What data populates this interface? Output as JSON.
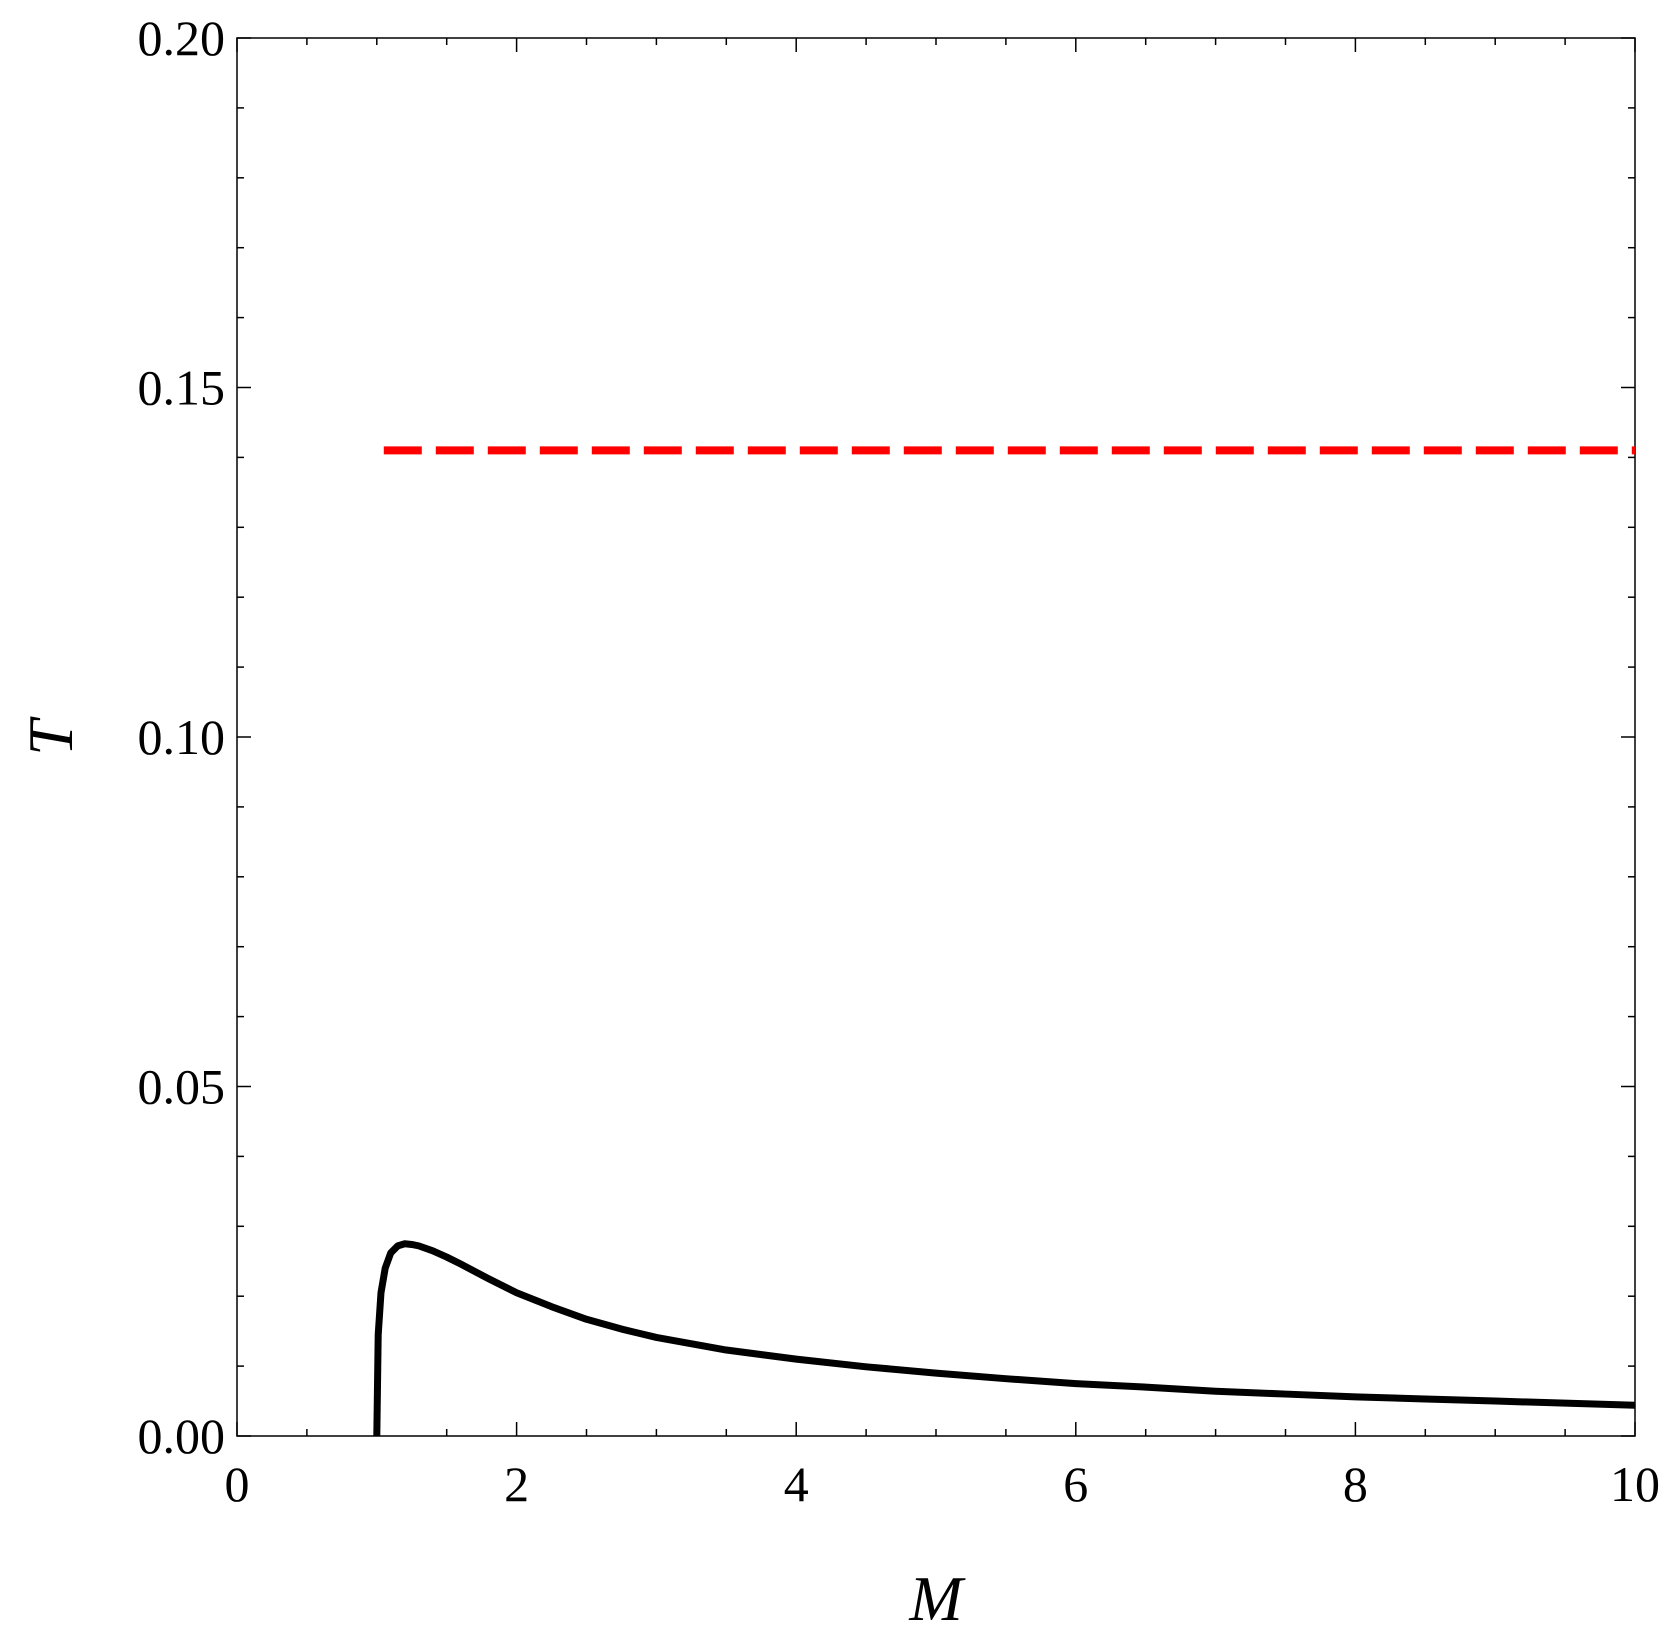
{
  "chart_data": {
    "type": "line",
    "title": "",
    "xlabel": "M",
    "ylabel": "T",
    "xlim": [
      0,
      10
    ],
    "ylim": [
      0,
      0.2
    ],
    "x_ticks": [
      "0",
      "2",
      "4",
      "6",
      "8",
      "10"
    ],
    "x_tick_values": [
      0,
      2,
      4,
      6,
      8,
      10
    ],
    "y_ticks": [
      "0.00",
      "0.05",
      "0.10",
      "0.15",
      "0.20"
    ],
    "y_tick_values": [
      0,
      0.05,
      0.1,
      0.15,
      0.2
    ],
    "x_minor_step": 0.5,
    "y_minor_step": 0.01,
    "grid": false,
    "legend": "none",
    "series": [
      {
        "style": "solid",
        "color": "#000000",
        "x": [
          1.0,
          1.01,
          1.03,
          1.06,
          1.1,
          1.15,
          1.2,
          1.25,
          1.3,
          1.4,
          1.5,
          1.6,
          1.8,
          2.0,
          2.25,
          2.5,
          2.75,
          3.0,
          3.5,
          4.0,
          4.5,
          5.0,
          5.5,
          6.0,
          6.5,
          7.0,
          7.5,
          8.0,
          8.5,
          9.0,
          9.5,
          10.0
        ],
        "y": [
          0.0,
          0.0145,
          0.0205,
          0.024,
          0.0262,
          0.0272,
          0.0275,
          0.0274,
          0.0272,
          0.0265,
          0.0256,
          0.0246,
          0.0225,
          0.0205,
          0.0185,
          0.0167,
          0.0153,
          0.0141,
          0.0123,
          0.011,
          0.0099,
          0.009,
          0.0082,
          0.0075,
          0.007,
          0.0064,
          0.006,
          0.0056,
          0.0053,
          0.005,
          0.0047,
          0.0044
        ]
      },
      {
        "style": "dashed",
        "color": "#ff0000",
        "x": [
          1.05,
          10.0
        ],
        "y": [
          0.141,
          0.141
        ]
      }
    ]
  }
}
